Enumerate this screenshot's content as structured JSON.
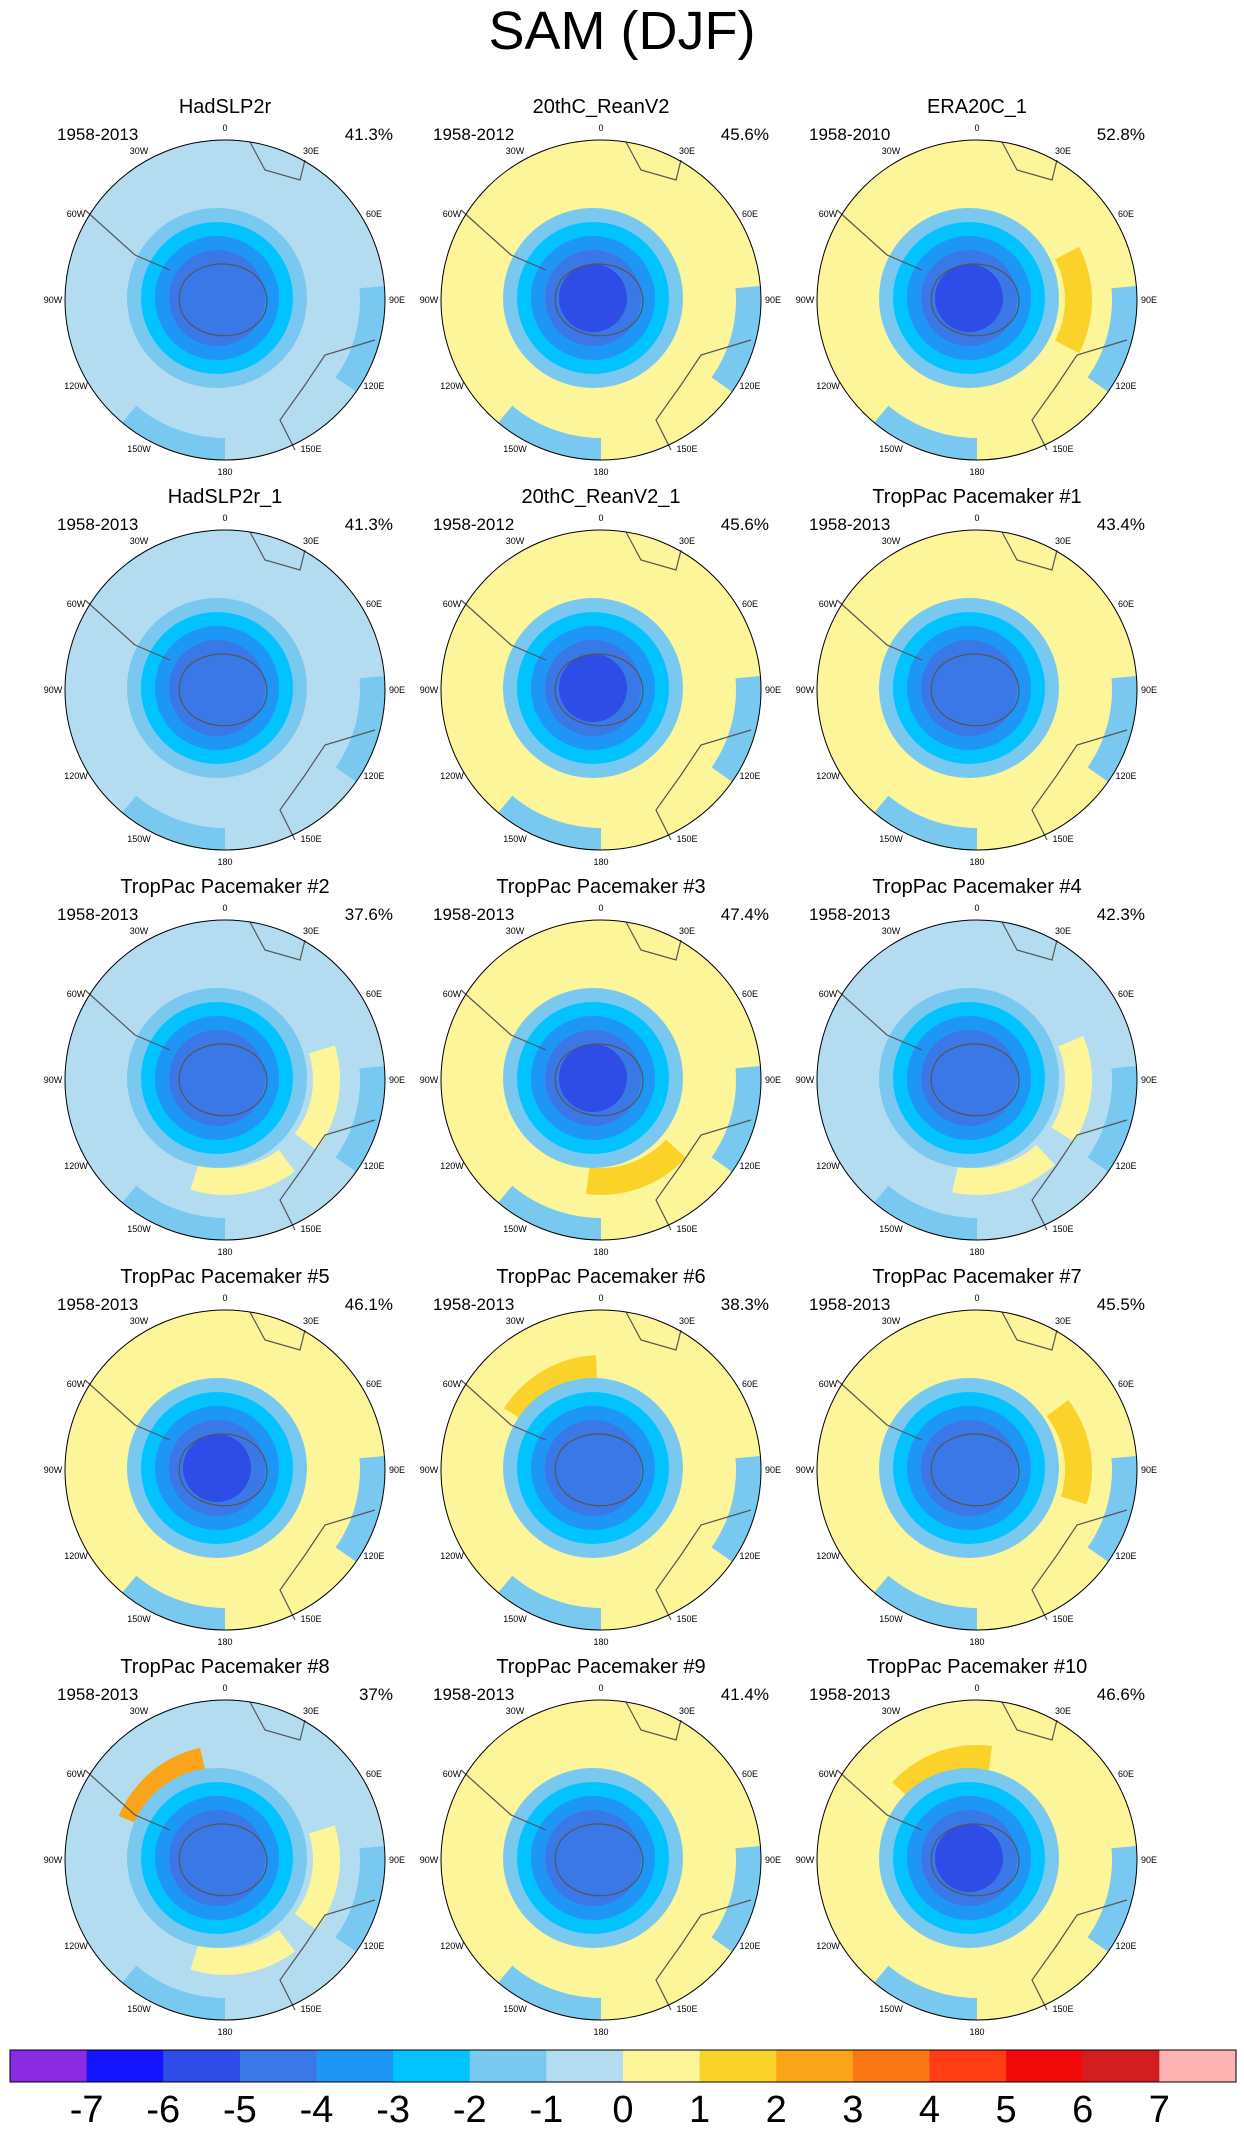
{
  "title": "SAM (DJF)",
  "panels": [
    {
      "name": "HadSLP2r",
      "period": "1958-2013",
      "pct": "41.3%",
      "core": -4,
      "ring": 0,
      "arcs": []
    },
    {
      "name": "20thC_ReanV2",
      "period": "1958-2012",
      "pct": "45.6%",
      "core": -5,
      "ring": 1,
      "arcs": [
        {
          "lon": 45,
          "level": 1
        }
      ]
    },
    {
      "name": "ERA20C_1",
      "period": "1958-2010",
      "pct": "52.8%",
      "core": -5,
      "ring": 1,
      "arcs": [
        {
          "lon": 20,
          "level": 1
        },
        {
          "lon": 90,
          "level": 2
        },
        {
          "lon": 165,
          "level": 1
        }
      ]
    },
    {
      "name": "HadSLP2r_1",
      "period": "1958-2013",
      "pct": "41.3%",
      "core": -4,
      "ring": 0,
      "arcs": []
    },
    {
      "name": "20thC_ReanV2_1",
      "period": "1958-2012",
      "pct": "45.6%",
      "core": -5,
      "ring": 1,
      "arcs": [
        {
          "lon": 45,
          "level": 1
        }
      ]
    },
    {
      "name": "TropPac Pacemaker #1",
      "period": "1958-2013",
      "pct": "43.4%",
      "core": -4,
      "ring": 1,
      "arcs": [
        {
          "lon": 45,
          "level": 1
        },
        {
          "lon": 165,
          "level": 1
        }
      ]
    },
    {
      "name": "TropPac Pacemaker #2",
      "period": "1958-2013",
      "pct": "37.6%",
      "core": -4,
      "ring": 0,
      "arcs": [
        {
          "lon": 100,
          "level": 1
        },
        {
          "lon": 170,
          "level": 1
        }
      ]
    },
    {
      "name": "TropPac Pacemaker #3",
      "period": "1958-2013",
      "pct": "47.4%",
      "core": -5,
      "ring": 1,
      "arcs": [
        {
          "lon": -30,
          "level": 1
        },
        {
          "lon": 160,
          "level": 2
        }
      ]
    },
    {
      "name": "TropPac Pacemaker #4",
      "period": "1958-2013",
      "pct": "42.3%",
      "core": -4,
      "ring": 0,
      "arcs": [
        {
          "lon": 95,
          "level": 1
        },
        {
          "lon": 165,
          "level": 1
        }
      ]
    },
    {
      "name": "TropPac Pacemaker #5",
      "period": "1958-2013",
      "pct": "46.1%",
      "core": -5,
      "ring": 1,
      "arcs": [
        {
          "lon": 0,
          "level": 1
        },
        {
          "lon": 75,
          "level": 1
        }
      ]
    },
    {
      "name": "TropPac Pacemaker #6",
      "period": "1958-2013",
      "pct": "38.3%",
      "core": -4,
      "ring": 1,
      "arcs": [
        {
          "lon": -30,
          "level": 2
        }
      ]
    },
    {
      "name": "TropPac Pacemaker #7",
      "period": "1958-2013",
      "pct": "45.5%",
      "core": -4,
      "ring": 1,
      "arcs": [
        {
          "lon": 0,
          "level": 1
        },
        {
          "lon": 80,
          "level": 2
        }
      ]
    },
    {
      "name": "TropPac Pacemaker #8",
      "period": "1958-2013",
      "pct": "37%",
      "core": -4,
      "ring": 0,
      "arcs": [
        {
          "lon": -40,
          "level": 3
        },
        {
          "lon": 100,
          "level": 1
        },
        {
          "lon": 170,
          "level": 1
        }
      ]
    },
    {
      "name": "TropPac Pacemaker #9",
      "period": "1958-2013",
      "pct": "41.4%",
      "core": -4,
      "ring": 1,
      "arcs": [
        {
          "lon": -20,
          "level": 1
        },
        {
          "lon": 170,
          "level": 1
        }
      ]
    },
    {
      "name": "TropPac Pacemaker #10",
      "period": "1958-2013",
      "pct": "46.6%",
      "core": -5,
      "ring": 1,
      "arcs": [
        {
          "lon": -20,
          "level": 2
        },
        {
          "lon": 40,
          "level": 1
        }
      ]
    }
  ],
  "lon_labels": [
    "0",
    "30E",
    "60E",
    "90E",
    "120E",
    "150E",
    "180",
    "150W",
    "120W",
    "90W",
    "60W",
    "30W"
  ],
  "colorbar": {
    "ticks": [
      "-7",
      "-6",
      "-5",
      "-4",
      "-3",
      "-2",
      "-1",
      "0",
      "1",
      "2",
      "3",
      "4",
      "5",
      "6",
      "7"
    ],
    "colors": [
      "#8a2be2",
      "#1414ff",
      "#2e4ce6",
      "#3a78e8",
      "#1e96f5",
      "#00c3ff",
      "#78c8f0",
      "#b4dcf0",
      "#fdf59a",
      "#fad22a",
      "#faa519",
      "#fa7814",
      "#ff3c14",
      "#f00a0a",
      "#d21e1e",
      "#ffb4b4"
    ]
  }
}
